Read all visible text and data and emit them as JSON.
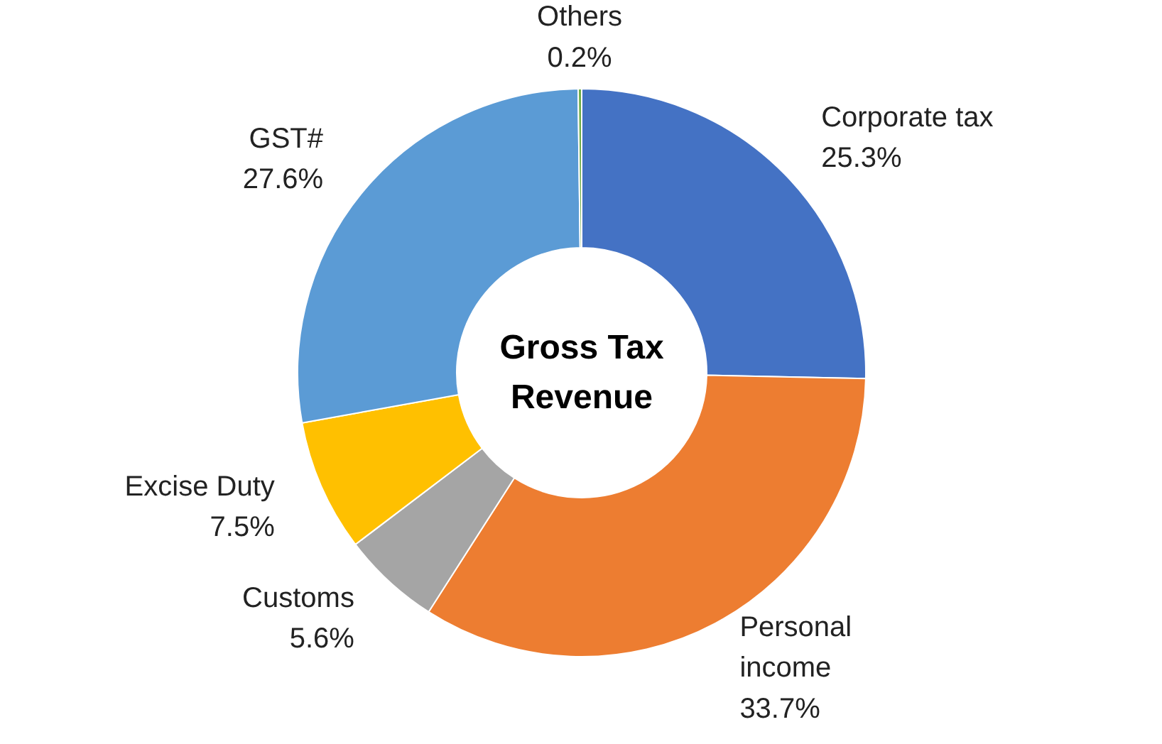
{
  "chart_data": {
    "type": "donut",
    "title": "Gross Tax Revenue",
    "categories": [
      "Corporate tax",
      "Personal income",
      "Customs",
      "Excise Duty",
      "GST#",
      "Others"
    ],
    "values": [
      25.3,
      33.7,
      5.6,
      7.5,
      27.6,
      0.2
    ],
    "value_labels": [
      "25.3%",
      "33.7%",
      "5.6%",
      "7.5%",
      "27.6%",
      "0.2%"
    ],
    "colors": [
      "#4472c4",
      "#ed7d31",
      "#a5a5a5",
      "#ffc000",
      "#5b9bd5",
      "#70ad47"
    ]
  }
}
